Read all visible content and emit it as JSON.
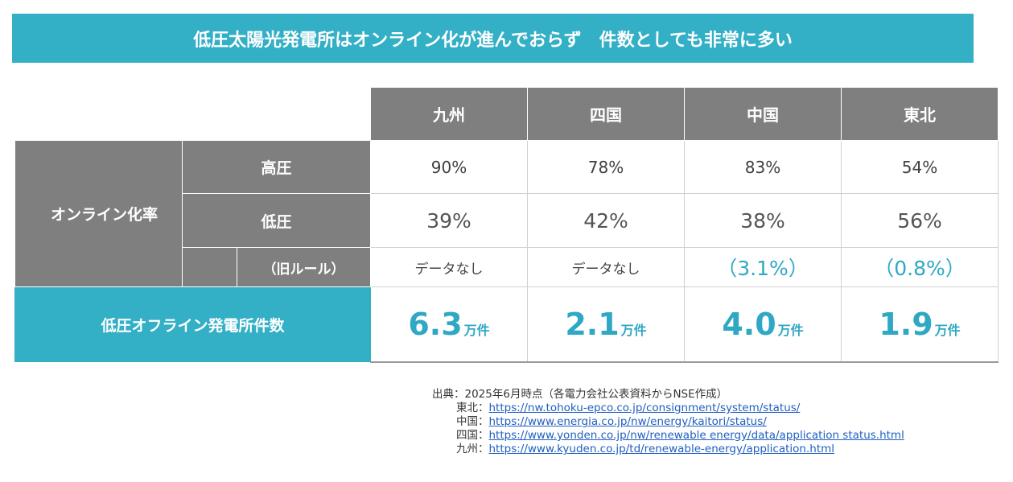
{
  "title": "低圧太陽光発電所はオンライン化が進んでおらず　件数としても非常に多い",
  "regions": [
    "九州",
    "四国",
    "中国",
    "東北"
  ],
  "online_rate_label": "オンライン化率",
  "rows": {
    "high_voltage": {
      "label": "高圧",
      "values": [
        "90%",
        "78%",
        "83%",
        "54%"
      ]
    },
    "low_voltage": {
      "label": "低圧",
      "values": [
        "39%",
        "42%",
        "38%",
        "56%"
      ]
    },
    "old_rule": {
      "label": "（旧ルール）",
      "values": [
        "データなし",
        "データなし",
        "（3.1%）",
        "（0.8%）"
      ]
    }
  },
  "offline": {
    "label": "低圧オフライン発電所件数",
    "values": [
      "6.3",
      "2.1",
      "4.0",
      "1.9"
    ],
    "unit": "万件"
  },
  "source": {
    "heading": "出典：2025年6月時点（各電力会社公表資料からNSE作成）",
    "links": [
      {
        "region": "東北：",
        "url": "https://nw.tohoku-epco.co.jp/consignment/system/status/"
      },
      {
        "region": "中国：",
        "url": "https://www.energia.co.jp/nw/energy/kaitori/status/"
      },
      {
        "region": "四国：",
        "url": "https://www.yonden.co.jp/nw/renewable energy/data/application status.html"
      },
      {
        "region": "九州：",
        "url": "https://www.kyuden.co.jp/td/renewable-energy/application.html"
      }
    ]
  }
}
